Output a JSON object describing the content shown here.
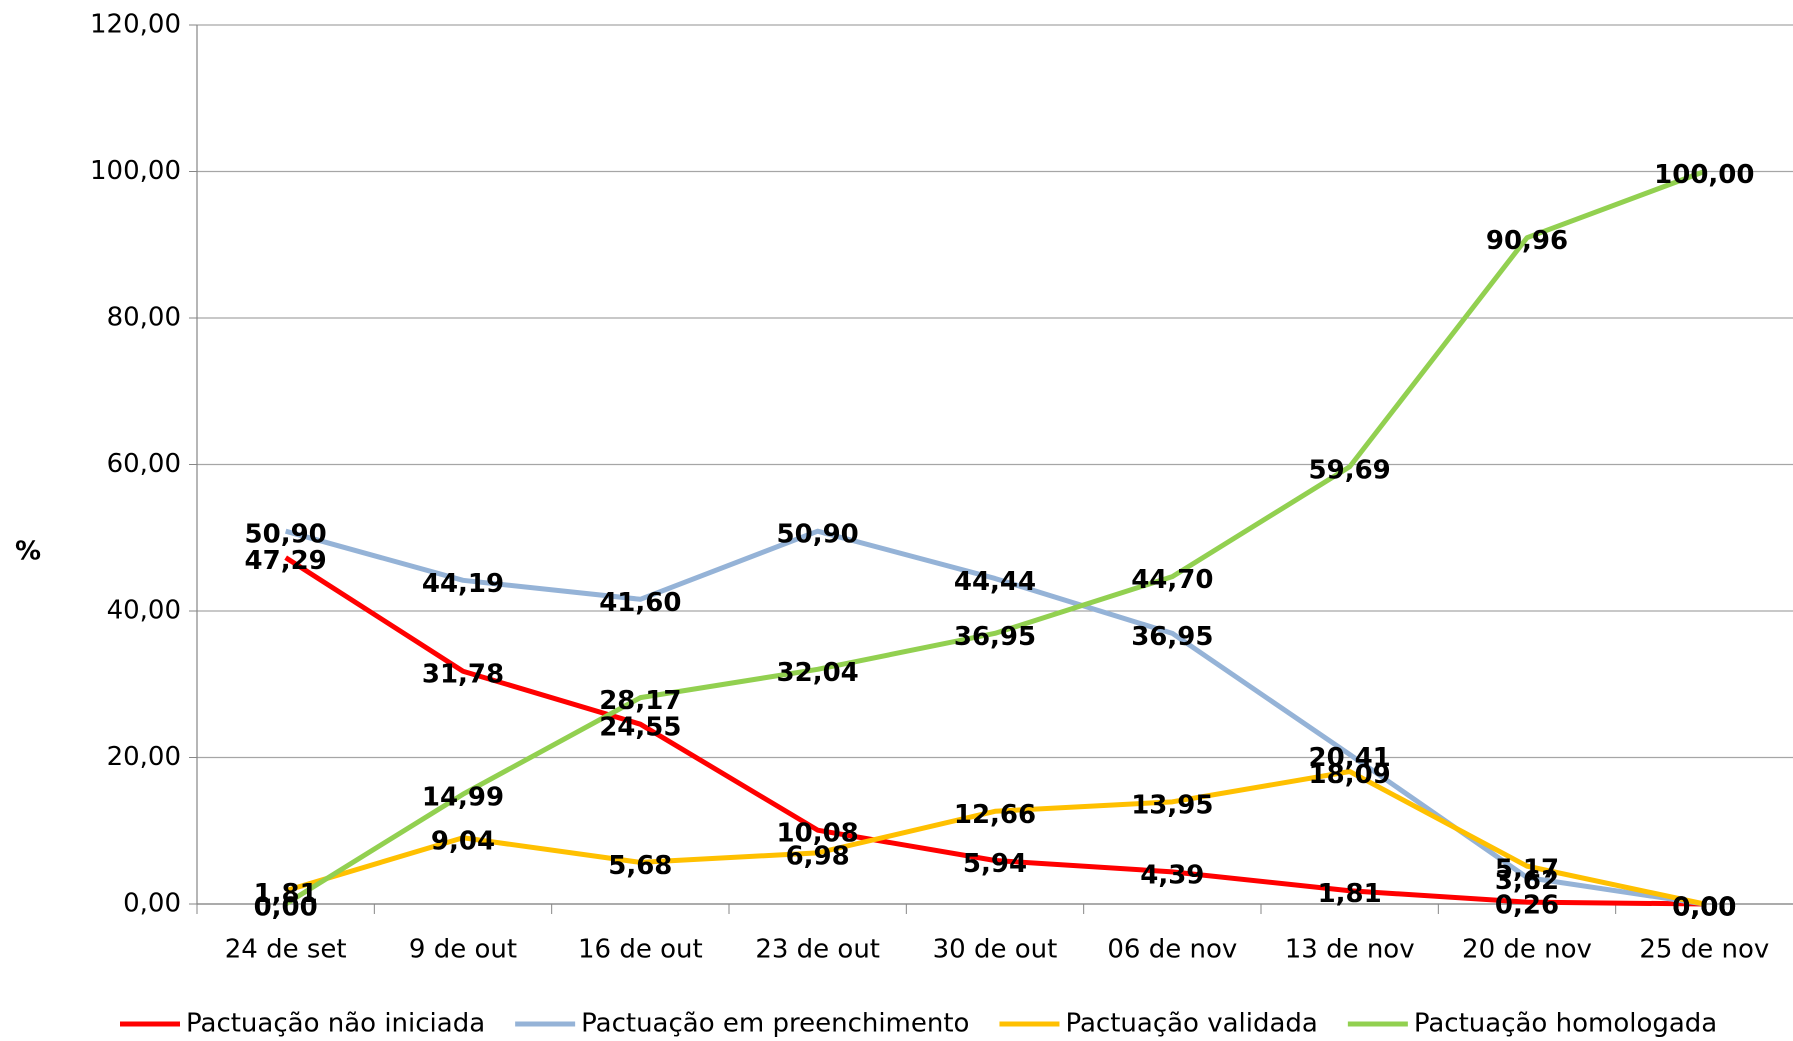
{
  "chart_data": {
    "type": "line",
    "y_label": "%",
    "categories": [
      "24 de set",
      "9 de out",
      "16 de out",
      "23 de out",
      "30 de out",
      "06 de nov",
      "13 de nov",
      "20 de nov",
      "25 de nov"
    ],
    "ylim": [
      0,
      120
    ],
    "yticks": [
      {
        "value": 0,
        "label": "0,00"
      },
      {
        "value": 20,
        "label": "20,00"
      },
      {
        "value": 40,
        "label": "40,00"
      },
      {
        "value": 60,
        "label": "60,00"
      },
      {
        "value": 80,
        "label": "80,00"
      },
      {
        "value": 100,
        "label": "100,00"
      },
      {
        "value": 120,
        "label": "120,00"
      }
    ],
    "grid": true,
    "legend": "bottom",
    "series": [
      {
        "name": "Pactuação não iniciada",
        "color": "#ff0000",
        "values": [
          47.29,
          31.78,
          24.55,
          10.08,
          5.94,
          4.39,
          1.81,
          0.26,
          0.0
        ],
        "value_labels": [
          "47,29",
          "31,78",
          "24,55",
          "10,08",
          "5,94",
          "4,39",
          "1,81",
          "0,26",
          "0,00"
        ]
      },
      {
        "name": "Pactuação em preenchimento",
        "color": "#95b3d7",
        "values": [
          50.9,
          44.19,
          41.6,
          50.9,
          44.44,
          36.95,
          20.41,
          3.62,
          0.0
        ],
        "value_labels": [
          "50,90",
          "44,19",
          "41,60",
          "50,90",
          "44,44",
          "36,95",
          "20,41",
          "3,62",
          "0,00"
        ]
      },
      {
        "name": "Pactuação validada",
        "color": "#ffc000",
        "values": [
          1.81,
          9.04,
          5.68,
          6.98,
          12.66,
          13.95,
          18.09,
          5.17,
          0.0
        ],
        "value_labels": [
          "1,81",
          "9,04",
          "5,68",
          "6,98",
          "12,66",
          "13,95",
          "18,09",
          "5,17",
          "0,00"
        ]
      },
      {
        "name": "Pactuação homologada",
        "color": "#92d050",
        "values": [
          0.0,
          14.99,
          28.17,
          32.04,
          36.95,
          44.7,
          59.69,
          90.96,
          100.0
        ],
        "value_labels": [
          "0,00",
          "14,99",
          "28,17",
          "32,04",
          "36,95",
          "44,70",
          "59,69",
          "90,96",
          "100,00"
        ]
      }
    ]
  }
}
